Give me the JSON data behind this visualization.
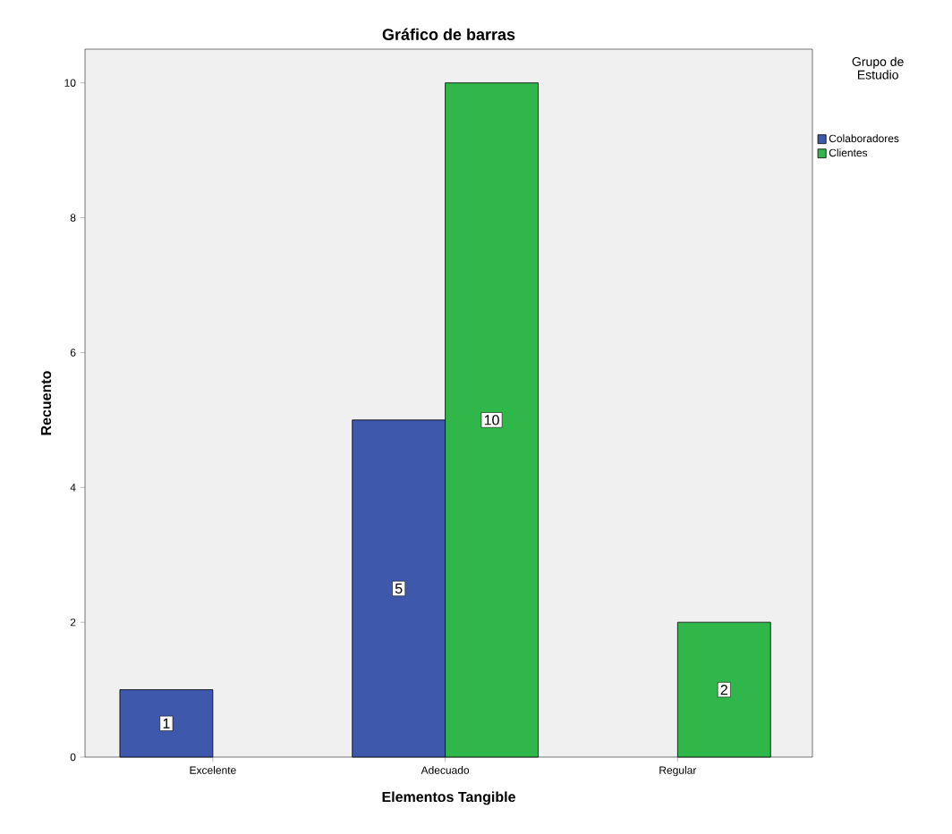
{
  "chart_data": {
    "type": "bar",
    "title": "Gráfico de barras",
    "xlabel": "Elementos Tangible",
    "ylabel": "Recuento",
    "legend_title": "Grupo de Estudio",
    "categories": [
      "Excelente",
      "Adecuado",
      "Regular"
    ],
    "series": [
      {
        "name": "Colaboradores",
        "color": "#3e58ac",
        "values": [
          1,
          5,
          null
        ]
      },
      {
        "name": "Clientes",
        "color": "#2fb74a",
        "values": [
          null,
          10,
          2
        ]
      }
    ],
    "ylim": [
      0,
      10.5
    ],
    "yticks": [
      0,
      2,
      4,
      6,
      8,
      10
    ],
    "data_labels": true,
    "legend": "top right",
    "grid": false
  }
}
